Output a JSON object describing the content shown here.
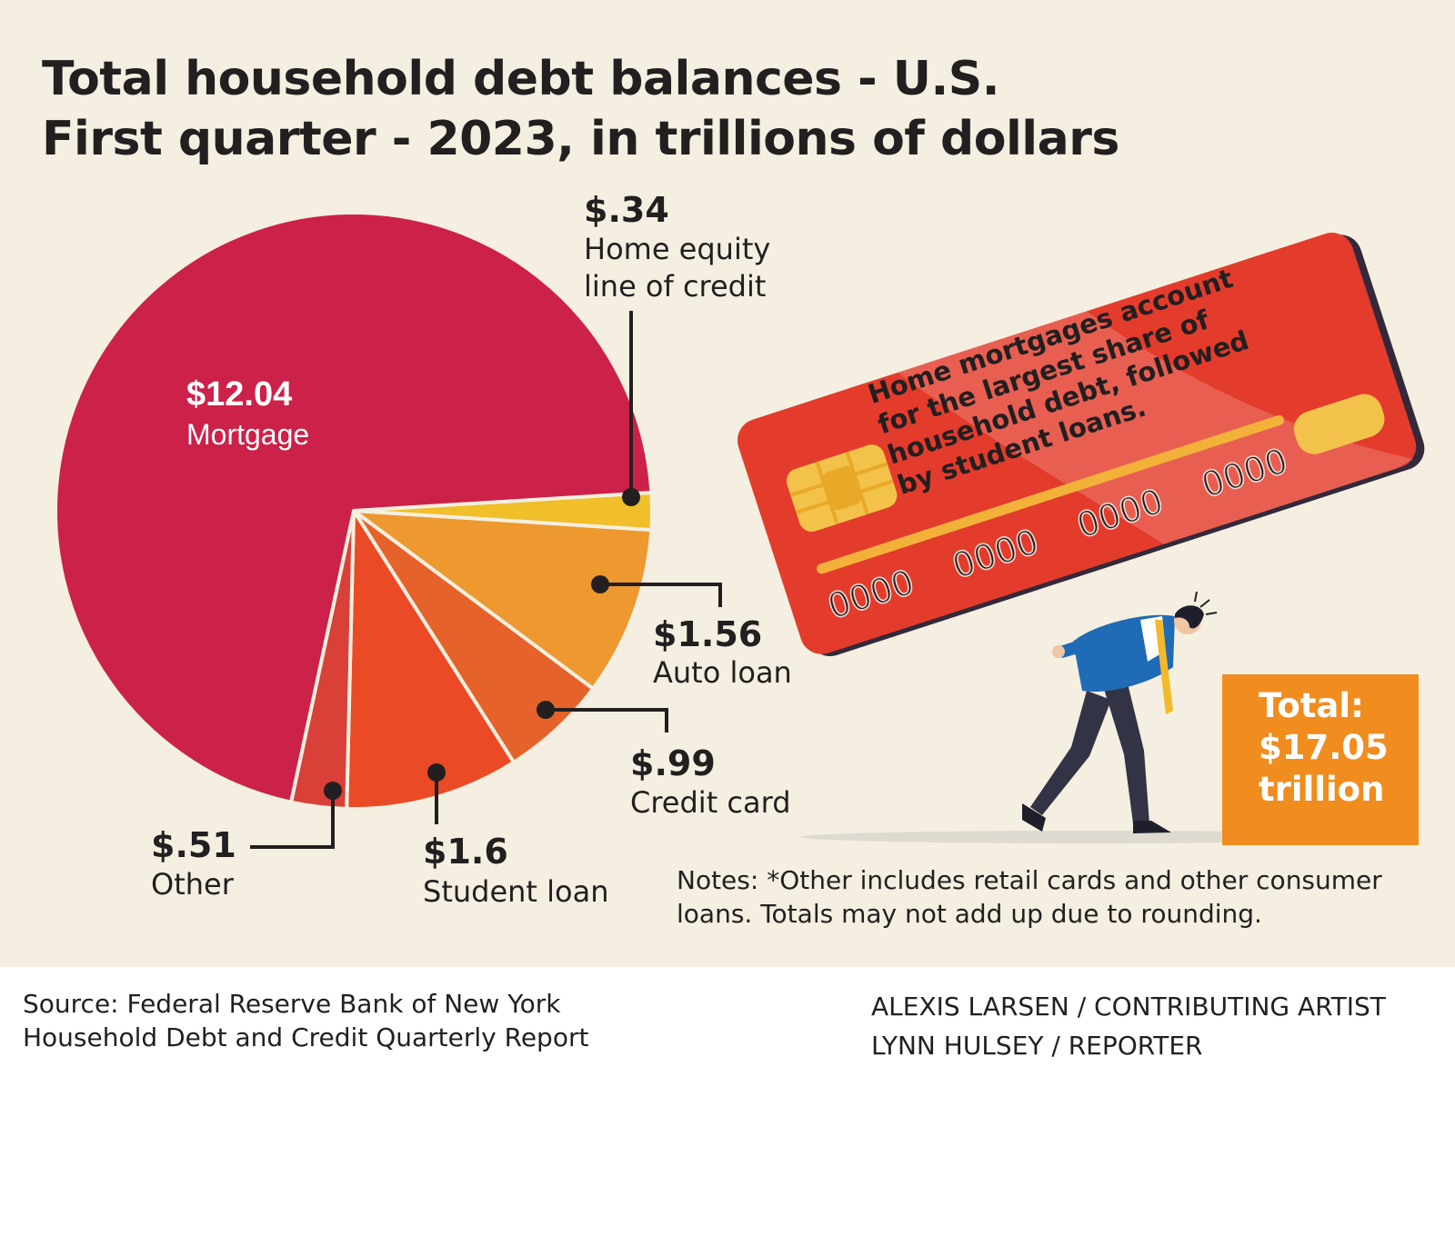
{
  "title_lines": [
    "Total household debt balances - U.S.",
    "First quarter - 2023, in trillions of dollars"
  ],
  "chart_data": {
    "type": "pie",
    "title": "Total household debt balances - U.S. First quarter - 2023, in trillions of dollars",
    "slices": [
      {
        "label": "Home equity line of credit",
        "value": 0.34,
        "value_label": "$.34",
        "color": "#f0bf2a"
      },
      {
        "label": "Auto loan",
        "value": 1.56,
        "value_label": "$1.56",
        "color": "#ee9830"
      },
      {
        "label": "Credit card",
        "value": 0.99,
        "value_label": "$.99",
        "color": "#e5632a"
      },
      {
        "label": "Student loan",
        "value": 1.6,
        "value_label": "$1.6",
        "color": "#ea4a26"
      },
      {
        "label": "Other",
        "value": 0.51,
        "value_label": "$.51",
        "color": "#d94037"
      },
      {
        "label": "Mortgage",
        "value": 12.04,
        "value_label": "$12.04",
        "color": "#cc2149"
      }
    ],
    "total_lines": [
      "Total:",
      "$17.05",
      "trillion"
    ]
  },
  "card": {
    "message_lines": [
      "Home mortgages account",
      "for the largest share of",
      "household debt, followed",
      "by student loans."
    ],
    "numbers": [
      "0000",
      "0000",
      "0000",
      "0000"
    ],
    "card_color": "#e33c2c",
    "chip_color": "#f3c24a"
  },
  "notes_text": "Notes: *Other includes retail cards and other consumer loans. Totals may not add up due to rounding.",
  "source_lines": [
    "Source:  Federal Reserve Bank of New York",
    "Household Debt and Credit Quarterly Report"
  ],
  "credit_lines": [
    "ALEXIS LARSEN / CONTRIBUTING ARTIST",
    "LYNN HULSEY / REPORTER"
  ],
  "colors": {
    "background": "#f4efe0",
    "text": "#231f20",
    "total_box": "#f18c1f"
  }
}
